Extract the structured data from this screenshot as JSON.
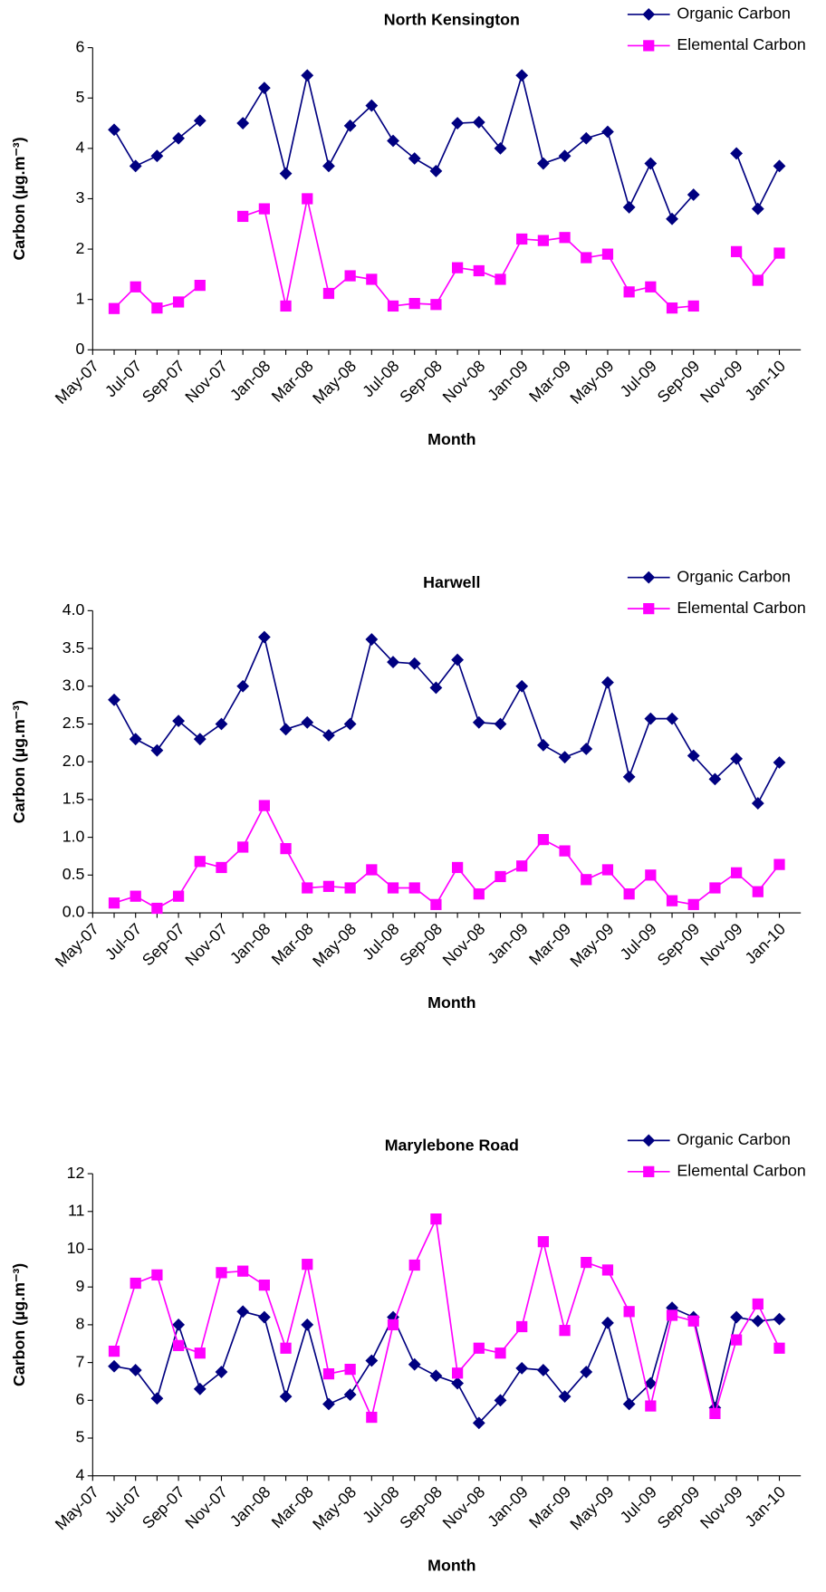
{
  "chart_data": [
    {
      "type": "line",
      "title": "North Kensington",
      "x_label": "Month",
      "y_label": "Carbon (µg.m⁻³)",
      "categories": [
        "May-07",
        null,
        "Jul-07",
        null,
        "Sep-07",
        null,
        "Nov-07",
        null,
        "Jan-08",
        null,
        "Mar-08",
        null,
        "May-08",
        null,
        "Jul-08",
        null,
        "Sep-08",
        null,
        "Nov-08",
        null,
        "Jan-09",
        null,
        "Mar-09",
        null,
        "May-09",
        null,
        "Jul-09",
        null,
        "Sep-09",
        null,
        "Nov-09",
        null,
        "Jan-10"
      ],
      "ylim": [
        0,
        6
      ],
      "yticks": [
        0,
        1,
        2,
        3,
        4,
        5,
        6
      ],
      "legend": "top-right",
      "series": [
        {
          "name": "Organic Carbon",
          "color": "#000080",
          "marker": "diamond",
          "values": [
            null,
            4.37,
            3.65,
            3.85,
            4.2,
            4.55,
            null,
            4.5,
            5.2,
            3.5,
            5.45,
            3.65,
            4.45,
            4.85,
            4.15,
            3.8,
            3.55,
            4.5,
            4.52,
            4.0,
            5.45,
            3.7,
            3.85,
            4.2,
            4.33,
            2.83,
            3.7,
            2.6,
            3.08,
            null,
            3.9,
            2.8,
            3.65
          ]
        },
        {
          "name": "Elemental Carbon",
          "color": "#ff00ff",
          "marker": "square",
          "values": [
            null,
            0.82,
            1.25,
            0.83,
            0.95,
            1.28,
            null,
            2.65,
            2.8,
            0.87,
            3.0,
            1.12,
            1.47,
            1.4,
            0.87,
            0.92,
            0.9,
            1.63,
            1.57,
            1.4,
            2.2,
            2.17,
            2.23,
            1.83,
            1.9,
            1.15,
            1.25,
            0.83,
            0.87,
            null,
            1.95,
            1.38,
            1.92
          ]
        }
      ]
    },
    {
      "type": "line",
      "title": "Harwell",
      "x_label": "Month",
      "y_label": "Carbon (µg.m⁻³)",
      "categories": [
        "May-07",
        null,
        "Jul-07",
        null,
        "Sep-07",
        null,
        "Nov-07",
        null,
        "Jan-08",
        null,
        "Mar-08",
        null,
        "May-08",
        null,
        "Jul-08",
        null,
        "Sep-08",
        null,
        "Nov-08",
        null,
        "Jan-09",
        null,
        "Mar-09",
        null,
        "May-09",
        null,
        "Jul-09",
        null,
        "Sep-09",
        null,
        "Nov-09",
        null,
        "Jan-10"
      ],
      "ylim": [
        0,
        4
      ],
      "yticks": [
        {
          "value": 0,
          "label": "0.0"
        },
        0.5,
        {
          "value": 1,
          "label": "1.0"
        },
        1.5,
        {
          "value": 2,
          "label": "2.0"
        },
        2.5,
        {
          "value": 3,
          "label": "3.0"
        },
        3.5,
        {
          "value": 4,
          "label": "4.0"
        }
      ],
      "legend": "top-right",
      "series": [
        {
          "name": "Organic Carbon",
          "color": "#000080",
          "marker": "diamond",
          "values": [
            null,
            2.82,
            2.3,
            2.15,
            2.54,
            2.3,
            2.5,
            3.0,
            3.65,
            2.43,
            2.52,
            2.35,
            2.5,
            3.62,
            3.32,
            3.3,
            2.98,
            3.35,
            2.52,
            2.5,
            3.0,
            2.22,
            2.06,
            2.17,
            3.05,
            1.8,
            2.57,
            2.57,
            2.08,
            1.77,
            2.04,
            1.45,
            1.99
          ]
        },
        {
          "name": "Elemental Carbon",
          "color": "#ff00ff",
          "marker": "square",
          "values": [
            null,
            0.13,
            0.22,
            0.06,
            0.22,
            0.68,
            0.6,
            0.87,
            1.42,
            0.85,
            0.33,
            0.35,
            0.33,
            0.57,
            0.33,
            0.33,
            0.11,
            0.6,
            0.25,
            0.48,
            0.62,
            0.97,
            0.82,
            0.44,
            0.57,
            0.25,
            0.5,
            0.16,
            0.11,
            0.33,
            0.53,
            0.28,
            0.64
          ]
        }
      ]
    },
    {
      "type": "line",
      "title": "Marylebone Road",
      "x_label": "Month",
      "y_label": "Carbon (µg.m⁻³)",
      "categories": [
        "May-07",
        null,
        "Jul-07",
        null,
        "Sep-07",
        null,
        "Nov-07",
        null,
        "Jan-08",
        null,
        "Mar-08",
        null,
        "May-08",
        null,
        "Jul-08",
        null,
        "Sep-08",
        null,
        "Nov-08",
        null,
        "Jan-09",
        null,
        "Mar-09",
        null,
        "May-09",
        null,
        "Jul-09",
        null,
        "Sep-09",
        null,
        "Nov-09",
        null,
        "Jan-10"
      ],
      "ylim": [
        4,
        12
      ],
      "yticks": [
        4,
        5,
        6,
        7,
        8,
        9,
        10,
        11,
        12
      ],
      "legend": "top-right",
      "series": [
        {
          "name": "Organic Carbon",
          "color": "#000080",
          "marker": "diamond",
          "values": [
            null,
            6.9,
            6.8,
            6.05,
            8.0,
            6.3,
            6.75,
            8.35,
            8.2,
            6.1,
            8.0,
            5.9,
            6.15,
            7.05,
            8.2,
            6.95,
            6.65,
            6.45,
            5.4,
            6.0,
            6.85,
            6.8,
            6.1,
            6.75,
            8.05,
            5.9,
            6.45,
            8.45,
            8.2,
            5.8,
            8.2,
            8.1,
            8.15
          ]
        },
        {
          "name": "Elemental Carbon",
          "color": "#ff00ff",
          "marker": "square",
          "values": [
            null,
            7.3,
            9.1,
            9.32,
            7.45,
            7.25,
            9.38,
            9.42,
            9.05,
            7.38,
            9.6,
            6.7,
            6.82,
            5.55,
            8.0,
            9.58,
            10.8,
            6.72,
            7.38,
            7.25,
            7.95,
            10.2,
            7.85,
            9.65,
            9.45,
            8.35,
            5.85,
            8.25,
            8.1,
            5.65,
            7.6,
            8.55,
            7.38
          ]
        }
      ]
    }
  ]
}
